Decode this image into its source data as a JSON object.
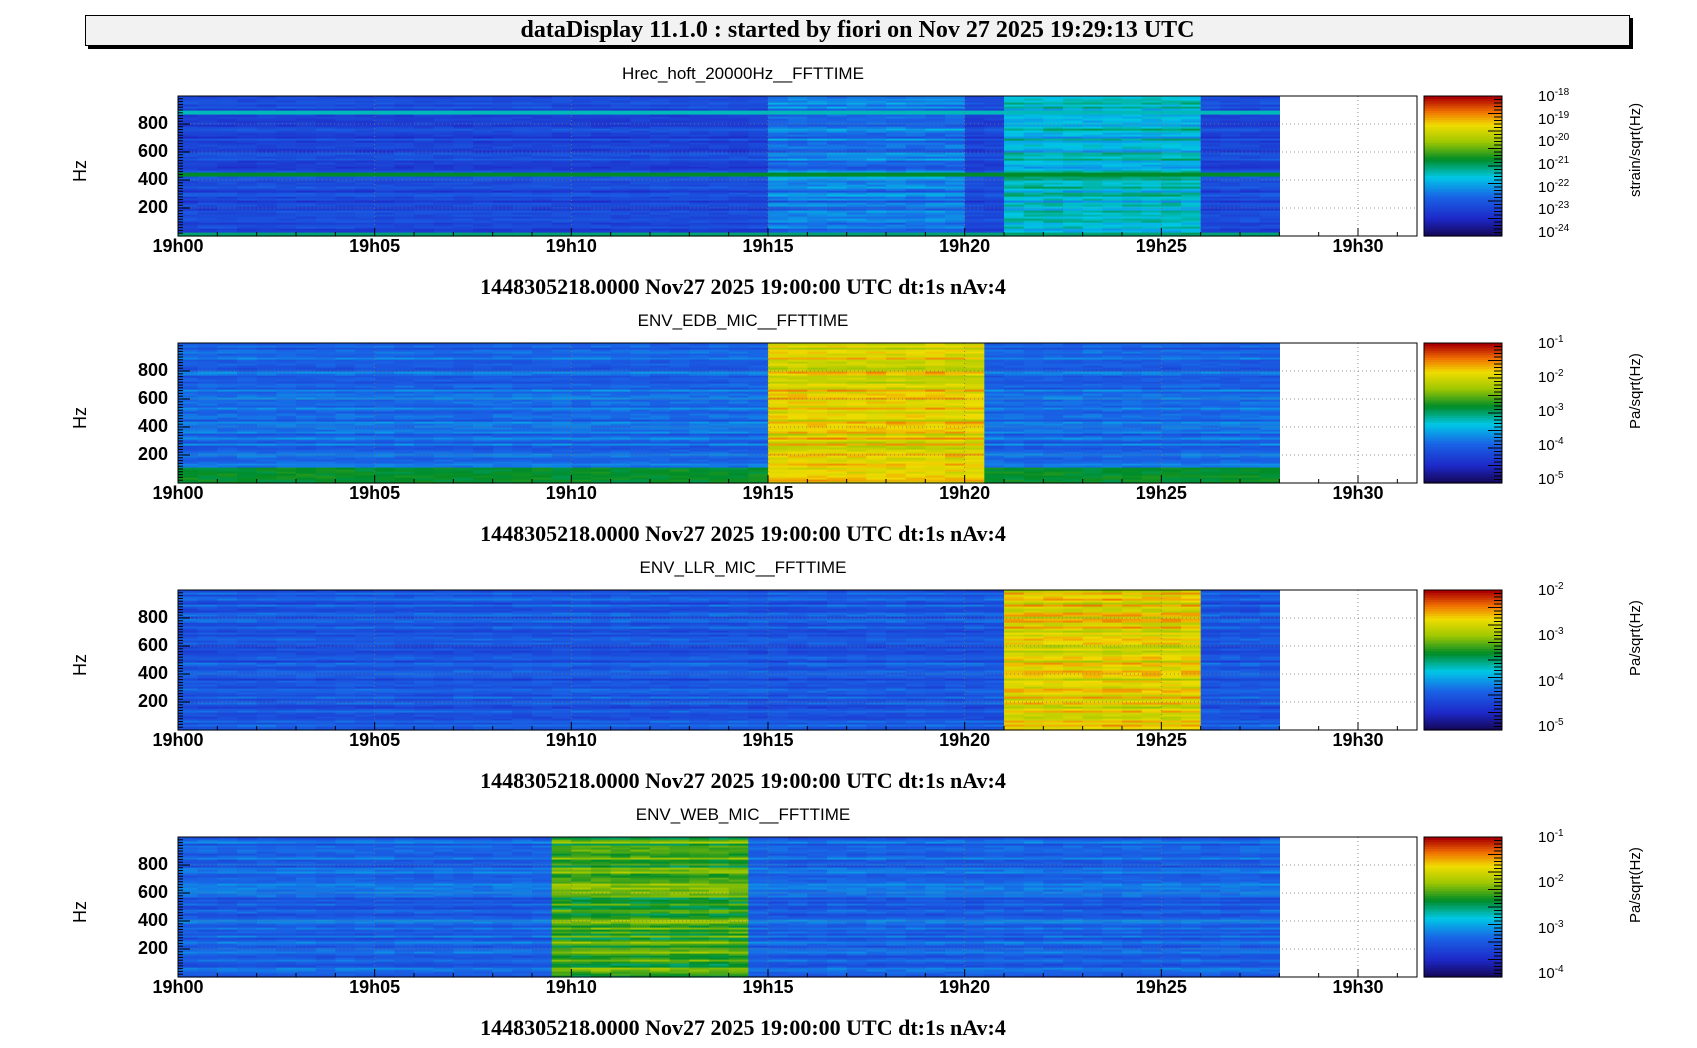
{
  "header": {
    "title": "dataDisplay 11.1.0 : started by fiori on Nov 27 2025 19:29:13 UTC"
  },
  "chart_data": [
    {
      "type": "heatmap",
      "title": "Hrec_hoft_20000Hz__FFTTIME",
      "ylabel": "Hz",
      "xlabel": "1448305218.0000 Nov27 2025 19:00:00 UTC dt:1s nAv:4",
      "x_ticks": [
        "19h00",
        "19h05",
        "19h10",
        "19h15",
        "19h20",
        "19h25",
        "19h30"
      ],
      "xlim_minutes": [
        0,
        31.5
      ],
      "data_end_minute": 28,
      "y_ticks": [
        "200",
        "400",
        "600",
        "800"
      ],
      "ylim": [
        0,
        1000
      ],
      "z_label": "strain/sqrt(Hz)",
      "z_scale": "log",
      "z_ticks": [
        {
          "base": "10",
          "exp": "-18"
        },
        {
          "base": "10",
          "exp": "-19"
        },
        {
          "base": "10",
          "exp": "-20"
        },
        {
          "base": "10",
          "exp": "-21"
        },
        {
          "base": "10",
          "exp": "-22"
        },
        {
          "base": "10",
          "exp": "-23"
        },
        {
          "base": "10",
          "exp": "-24"
        }
      ],
      "background_level": 0.2,
      "lines": [
        {
          "y": 890,
          "level": 0.45
        },
        {
          "y": 440,
          "level": 0.55
        },
        {
          "y": 20,
          "level": 0.5
        }
      ],
      "events": [
        {
          "start_min": 15.1,
          "end_min": 20.1,
          "level": 0.3
        },
        {
          "start_min": 21.0,
          "end_min": 26.0,
          "level": 0.42
        }
      ]
    },
    {
      "type": "heatmap",
      "title": "ENV_EDB_MIC__FFTTIME",
      "ylabel": "Hz",
      "xlabel": "1448305218.0000 Nov27 2025 19:00:00 UTC dt:1s nAv:4",
      "x_ticks": [
        "19h00",
        "19h05",
        "19h10",
        "19h15",
        "19h20",
        "19h25",
        "19h30"
      ],
      "xlim_minutes": [
        0,
        31.5
      ],
      "data_end_minute": 28,
      "y_ticks": [
        "200",
        "400",
        "600",
        "800"
      ],
      "ylim": [
        0,
        1000
      ],
      "z_label": "Pa/sqrt(Hz)",
      "z_scale": "log",
      "z_ticks": [
        {
          "base": "10",
          "exp": "-1"
        },
        {
          "base": "10",
          "exp": "-2"
        },
        {
          "base": "10",
          "exp": "-3"
        },
        {
          "base": "10",
          "exp": "-4"
        },
        {
          "base": "10",
          "exp": "-5"
        }
      ],
      "background_level": 0.28,
      "low_band": {
        "max_y": 120,
        "level": 0.55
      },
      "lines": [],
      "events": [
        {
          "start_min": 15.0,
          "end_min": 20.3,
          "level": 0.78
        }
      ]
    },
    {
      "type": "heatmap",
      "title": "ENV_LLR_MIC__FFTTIME",
      "ylabel": "Hz",
      "xlabel": "1448305218.0000 Nov27 2025 19:00:00 UTC dt:1s nAv:4",
      "x_ticks": [
        "19h00",
        "19h05",
        "19h10",
        "19h15",
        "19h20",
        "19h25",
        "19h30"
      ],
      "xlim_minutes": [
        0,
        31.5
      ],
      "data_end_minute": 28,
      "y_ticks": [
        "200",
        "400",
        "600",
        "800"
      ],
      "ylim": [
        0,
        1000
      ],
      "z_label": "Pa/sqrt(Hz)",
      "z_scale": "log",
      "z_ticks": [
        {
          "base": "10",
          "exp": "-2"
        },
        {
          "base": "10",
          "exp": "-3"
        },
        {
          "base": "10",
          "exp": "-4"
        },
        {
          "base": "10",
          "exp": "-5"
        }
      ],
      "background_level": 0.24,
      "lines": [],
      "events": [
        {
          "start_min": 21.0,
          "end_min": 26.1,
          "level": 0.78
        }
      ]
    },
    {
      "type": "heatmap",
      "title": "ENV_WEB_MIC__FFTTIME",
      "ylabel": "Hz",
      "xlabel": "1448305218.0000 Nov27 2025 19:00:00 UTC dt:1s nAv:4",
      "x_ticks": [
        "19h00",
        "19h05",
        "19h10",
        "19h15",
        "19h20",
        "19h25",
        "19h30"
      ],
      "xlim_minutes": [
        0,
        31.5
      ],
      "data_end_minute": 28,
      "y_ticks": [
        "200",
        "400",
        "600",
        "800"
      ],
      "ylim": [
        0,
        1000
      ],
      "z_label": "Pa/sqrt(Hz)",
      "z_scale": "log",
      "z_ticks": [
        {
          "base": "10",
          "exp": "-1"
        },
        {
          "base": "10",
          "exp": "-2"
        },
        {
          "base": "10",
          "exp": "-3"
        },
        {
          "base": "10",
          "exp": "-4"
        }
      ],
      "background_level": 0.27,
      "lines": [],
      "events": [
        {
          "start_min": 9.3,
          "end_min": 14.4,
          "level": 0.6
        }
      ]
    }
  ]
}
